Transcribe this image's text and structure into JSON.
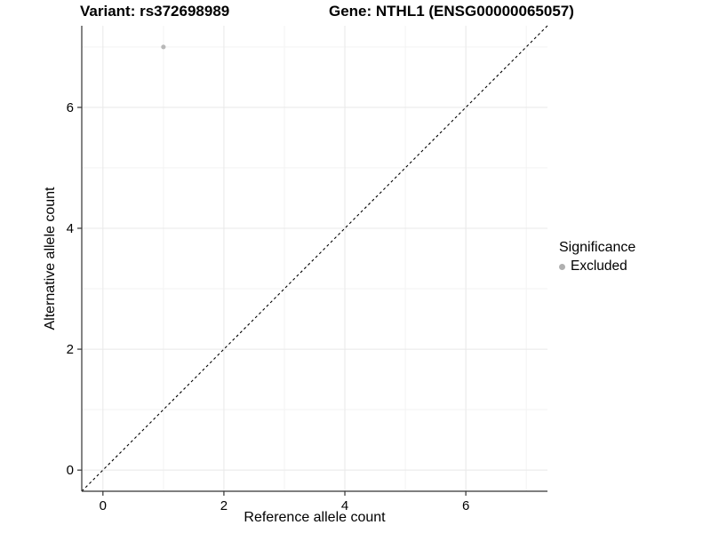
{
  "header": {
    "variant_title": "Variant: rs372698989",
    "gene_title": "Gene: NTHL1 (ENSG00000065057)"
  },
  "chart_data": {
    "type": "scatter",
    "title": "Variant: rs372698989   Gene: NTHL1 (ENSG00000065057)",
    "xlabel": "Reference allele count",
    "ylabel": "Alternative allele count",
    "xlim": [
      -0.35,
      7.35
    ],
    "ylim": [
      -0.35,
      7.35
    ],
    "x_ticks": [
      0,
      2,
      4,
      6
    ],
    "y_ticks": [
      0,
      2,
      4,
      6
    ],
    "x_minor_breaks": [
      1,
      3,
      5,
      7
    ],
    "y_minor_breaks": [
      1,
      3,
      5,
      7
    ],
    "grid": "on",
    "series": [
      {
        "name": "Excluded",
        "color": "#b8b8b8",
        "point_radius": 2.6,
        "points": [
          {
            "x": 1,
            "y": 7
          }
        ]
      }
    ],
    "identity_line": {
      "type": "y=x",
      "style": "dashed",
      "from": -0.35,
      "to": 7.35,
      "color": "#000000"
    },
    "legend": {
      "position": "right",
      "title": "Significance",
      "items": [
        {
          "label": "Excluded",
          "color": "#b0b0b0"
        }
      ]
    },
    "colors": {
      "background": "#ffffff",
      "grid_major": "#e8e8e8",
      "grid_minor": "#f3f3f3",
      "axis": "#333333",
      "text": "#000000"
    }
  }
}
